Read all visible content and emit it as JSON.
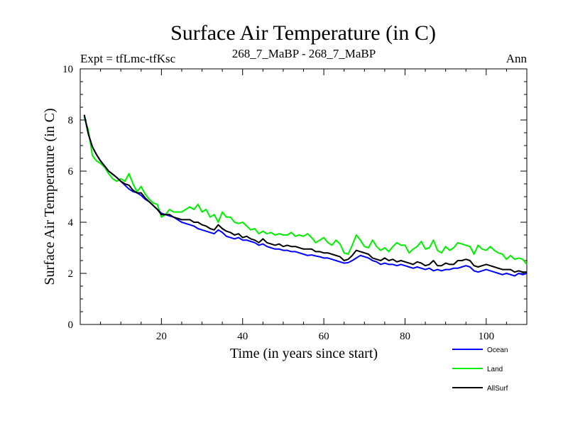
{
  "chart_data": {
    "type": "line",
    "title": "Surface Air Temperature (in C)",
    "subtitle_left": "Expt = tfLmc-tfKsc",
    "subtitle_center": "268_7_MaBP - 268_7_MaBP",
    "subtitle_right": "Ann",
    "xlabel": "Time (in years since start)",
    "ylabel": "Surface Air Temperature (in C)",
    "xlim": [
      0,
      110
    ],
    "ylim": [
      0,
      10
    ],
    "x_ticks": [
      20,
      40,
      60,
      80,
      100
    ],
    "y_ticks": [
      0,
      2,
      4,
      6,
      8,
      10
    ],
    "x_tick_labels": [
      "20",
      "40",
      "60",
      "80",
      "100"
    ],
    "y_tick_labels": [
      "0",
      "2",
      "4",
      "6",
      "8",
      "10"
    ],
    "legend_position": "bottom-right, below plot",
    "x": [
      1,
      2,
      3,
      4,
      5,
      6,
      7,
      8,
      9,
      10,
      11,
      12,
      13,
      14,
      15,
      16,
      17,
      18,
      19,
      20,
      21,
      22,
      23,
      24,
      25,
      26,
      27,
      28,
      29,
      30,
      31,
      32,
      33,
      34,
      35,
      36,
      37,
      38,
      39,
      40,
      41,
      42,
      43,
      44,
      45,
      46,
      47,
      48,
      49,
      50,
      51,
      52,
      53,
      54,
      55,
      56,
      57,
      58,
      59,
      60,
      61,
      62,
      63,
      64,
      65,
      66,
      67,
      68,
      69,
      70,
      71,
      72,
      73,
      74,
      75,
      76,
      77,
      78,
      79,
      80,
      81,
      82,
      83,
      84,
      85,
      86,
      87,
      88,
      89,
      90,
      91,
      92,
      93,
      94,
      95,
      96,
      97,
      98,
      99,
      100,
      101,
      102,
      103,
      104,
      105,
      106,
      107,
      108,
      109,
      110
    ],
    "series": [
      {
        "name": "Ocean",
        "color": "#0000ff",
        "values": [
          8.2,
          7.45,
          6.95,
          6.65,
          6.4,
          6.2,
          6.0,
          5.88,
          5.75,
          5.6,
          5.45,
          5.3,
          5.2,
          5.15,
          5.05,
          4.9,
          4.8,
          4.65,
          4.5,
          4.35,
          4.3,
          4.25,
          4.2,
          4.1,
          4.0,
          3.95,
          3.9,
          3.85,
          3.75,
          3.7,
          3.65,
          3.6,
          3.55,
          3.7,
          3.6,
          3.45,
          3.4,
          3.35,
          3.4,
          3.3,
          3.3,
          3.25,
          3.2,
          3.1,
          3.15,
          3.05,
          3.0,
          2.95,
          2.95,
          2.9,
          2.9,
          2.85,
          2.85,
          2.8,
          2.75,
          2.7,
          2.72,
          2.68,
          2.65,
          2.6,
          2.6,
          2.55,
          2.5,
          2.45,
          2.4,
          2.42,
          2.5,
          2.6,
          2.7,
          2.65,
          2.6,
          2.5,
          2.45,
          2.35,
          2.4,
          2.35,
          2.35,
          2.3,
          2.35,
          2.3,
          2.25,
          2.2,
          2.25,
          2.2,
          2.15,
          2.2,
          2.1,
          2.15,
          2.1,
          2.15,
          2.15,
          2.2,
          2.2,
          2.25,
          2.3,
          2.25,
          2.1,
          2.05,
          2.1,
          2.15,
          2.1,
          2.05,
          2.0,
          1.95,
          2.0,
          1.95,
          1.9,
          2.0,
          1.95,
          2.0
        ]
      },
      {
        "name": "Land",
        "color": "#00ee00",
        "values": [
          8.1,
          7.6,
          6.6,
          6.4,
          6.3,
          6.15,
          5.9,
          5.7,
          5.6,
          5.7,
          5.6,
          5.9,
          5.5,
          5.2,
          5.4,
          5.1,
          4.9,
          4.75,
          4.7,
          4.2,
          4.3,
          4.5,
          4.4,
          4.4,
          4.4,
          4.5,
          4.6,
          4.5,
          4.7,
          4.4,
          4.5,
          4.2,
          4.3,
          4.0,
          4.4,
          4.2,
          4.2,
          4.0,
          3.95,
          4.0,
          3.85,
          3.7,
          3.75,
          3.55,
          3.65,
          3.55,
          3.6,
          3.5,
          3.55,
          3.5,
          3.5,
          3.6,
          3.45,
          3.5,
          3.45,
          3.55,
          3.4,
          3.2,
          3.3,
          3.4,
          3.2,
          3.1,
          3.3,
          3.15,
          2.8,
          2.75,
          3.1,
          3.5,
          3.3,
          3.05,
          3.0,
          3.3,
          3.05,
          2.9,
          3.0,
          2.85,
          3.05,
          3.2,
          3.1,
          3.1,
          2.8,
          2.95,
          3.05,
          3.25,
          2.95,
          3.0,
          3.3,
          2.9,
          2.8,
          3.05,
          2.9,
          3.0,
          3.2,
          3.15,
          3.1,
          3.05,
          2.75,
          3.1,
          2.95,
          2.9,
          3.05,
          2.9,
          2.8,
          2.75,
          2.55,
          2.7,
          2.55,
          2.6,
          2.55,
          2.35
        ]
      },
      {
        "name": "AllSurf",
        "color": "#000000",
        "values": [
          8.2,
          7.45,
          6.95,
          6.65,
          6.4,
          6.2,
          6.0,
          5.88,
          5.75,
          5.6,
          5.5,
          5.45,
          5.25,
          5.15,
          5.15,
          4.95,
          4.8,
          4.65,
          4.5,
          4.3,
          4.3,
          4.3,
          4.2,
          4.15,
          4.1,
          4.1,
          4.1,
          4.0,
          4.0,
          3.9,
          3.85,
          3.75,
          3.7,
          3.9,
          3.75,
          3.65,
          3.6,
          3.5,
          3.55,
          3.4,
          3.45,
          3.35,
          3.3,
          3.2,
          3.35,
          3.2,
          3.15,
          3.1,
          3.15,
          3.05,
          3.1,
          3.05,
          3.05,
          3.0,
          2.95,
          2.95,
          2.95,
          2.85,
          2.85,
          2.8,
          2.8,
          2.75,
          2.7,
          2.65,
          2.5,
          2.55,
          2.7,
          2.9,
          2.85,
          2.8,
          2.75,
          2.6,
          2.55,
          2.5,
          2.6,
          2.5,
          2.55,
          2.45,
          2.5,
          2.45,
          2.4,
          2.35,
          2.45,
          2.4,
          2.3,
          2.35,
          2.5,
          2.3,
          2.3,
          2.4,
          2.35,
          2.35,
          2.5,
          2.5,
          2.55,
          2.5,
          2.3,
          2.25,
          2.3,
          2.35,
          2.3,
          2.25,
          2.2,
          2.15,
          2.15,
          2.15,
          2.05,
          2.1,
          2.05,
          2.05
        ]
      }
    ]
  }
}
